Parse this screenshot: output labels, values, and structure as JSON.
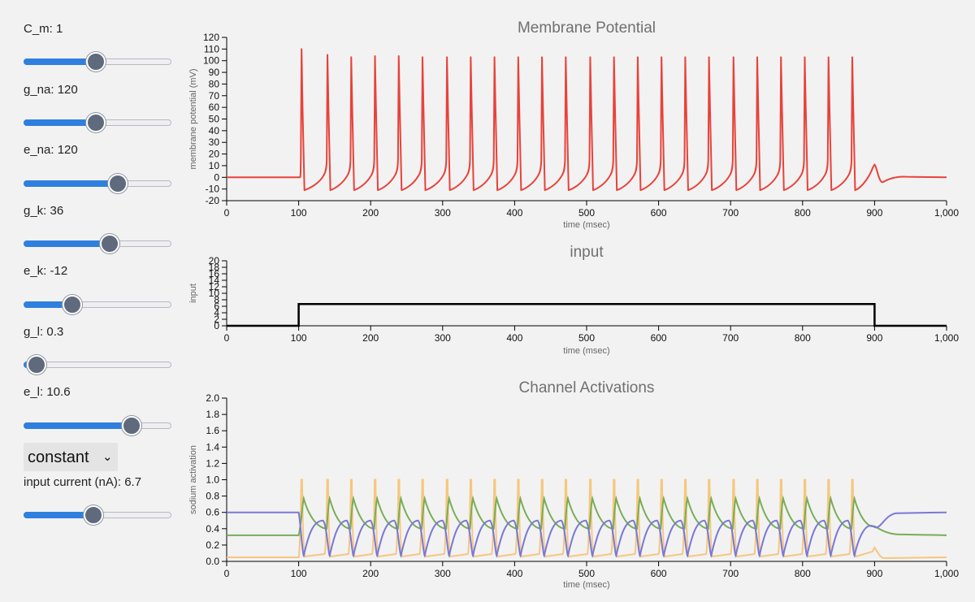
{
  "controls": {
    "c_m": {
      "label": "C_m: 1",
      "fraction": 0.49
    },
    "g_na": {
      "label": "g_na: 120",
      "fraction": 0.49
    },
    "e_na": {
      "label": "e_na: 120",
      "fraction": 0.64
    },
    "g_k": {
      "label": "g_k: 36",
      "fraction": 0.58
    },
    "e_k": {
      "label": "e_k: -12",
      "fraction": 0.33
    },
    "g_l": {
      "label": "g_l: 0.3",
      "fraction": 0.09
    },
    "e_l": {
      "label": "e_l: 10.6",
      "fraction": 0.73
    },
    "input_type": {
      "value": "constant"
    },
    "input_current": {
      "label": "input current (nA): 6.7",
      "fraction": 0.47
    }
  },
  "colors": {
    "membrane": "#e8423a",
    "input": "#000000",
    "sodium_m": "#f5c77e",
    "sodium_h": "#7a78d6",
    "potassium_n": "#78ad57",
    "slider_fill": "#2f7fdf",
    "slider_thumb": "#5f6a7c"
  },
  "chart_data": [
    {
      "type": "line",
      "title": "Membrane Potential",
      "xlabel": "time (msec)",
      "ylabel": "membrane potential (mV)",
      "xlim": [
        0,
        1000
      ],
      "ylim": [
        -20,
        120
      ],
      "xticks": [
        "0",
        "100",
        "200",
        "300",
        "400",
        "500",
        "600",
        "700",
        "800",
        "900",
        "1,000"
      ],
      "yticks": [
        "-20",
        "-10",
        "0",
        "10",
        "20",
        "30",
        "40",
        "50",
        "60",
        "70",
        "80",
        "90",
        "100",
        "110",
        "120"
      ],
      "grid": false,
      "spike_times": [
        104,
        140,
        173,
        206,
        239,
        272,
        306,
        339,
        372,
        405,
        438,
        471,
        505,
        538,
        571,
        604,
        637,
        670,
        704,
        737,
        770,
        803,
        836,
        869
      ],
      "spike_peaks": [
        110,
        105,
        103,
        104,
        104,
        103,
        103,
        103,
        103,
        103,
        103,
        103,
        103,
        103,
        103,
        103,
        103,
        103,
        103,
        103,
        103,
        103,
        103,
        103
      ],
      "rest": 0,
      "trough": -11,
      "input_window": [
        100,
        900
      ]
    },
    {
      "type": "line",
      "title": "input",
      "xlabel": "time (msec)",
      "ylabel": "input",
      "xlim": [
        0,
        1000
      ],
      "ylim": [
        0,
        20
      ],
      "xticks": [
        "0",
        "100",
        "200",
        "300",
        "400",
        "500",
        "600",
        "700",
        "800",
        "900",
        "1,000"
      ],
      "yticks": [
        "0",
        "2",
        "4",
        "6",
        "8",
        "10",
        "12",
        "14",
        "16",
        "18",
        "20"
      ],
      "x": [
        0,
        100,
        100,
        900,
        900,
        1000
      ],
      "y": [
        0,
        0,
        6.7,
        6.7,
        0,
        0
      ]
    },
    {
      "type": "line",
      "title": "Channel Activations",
      "xlabel": "time (msec)",
      "ylabel": "sodium activation",
      "xlim": [
        0,
        1000
      ],
      "ylim": [
        0,
        2
      ],
      "xticks": [
        "0",
        "100",
        "200",
        "300",
        "400",
        "500",
        "600",
        "700",
        "800",
        "900",
        "1,000"
      ],
      "yticks": [
        "0.0",
        "0.2",
        "0.4",
        "0.6",
        "0.8",
        "1.0",
        "1.2",
        "1.4",
        "1.6",
        "1.8",
        "2.0"
      ],
      "series_rest": {
        "sodium_m": 0.05,
        "sodium_h": 0.6,
        "potassium_n": 0.32
      },
      "series_spiking": {
        "sodium_m": {
          "min": 0.06,
          "peak": 1.0
        },
        "sodium_h": {
          "min": 0.07,
          "max": 0.5
        },
        "potassium_n": {
          "min": 0.4,
          "max": 0.77
        }
      }
    }
  ]
}
